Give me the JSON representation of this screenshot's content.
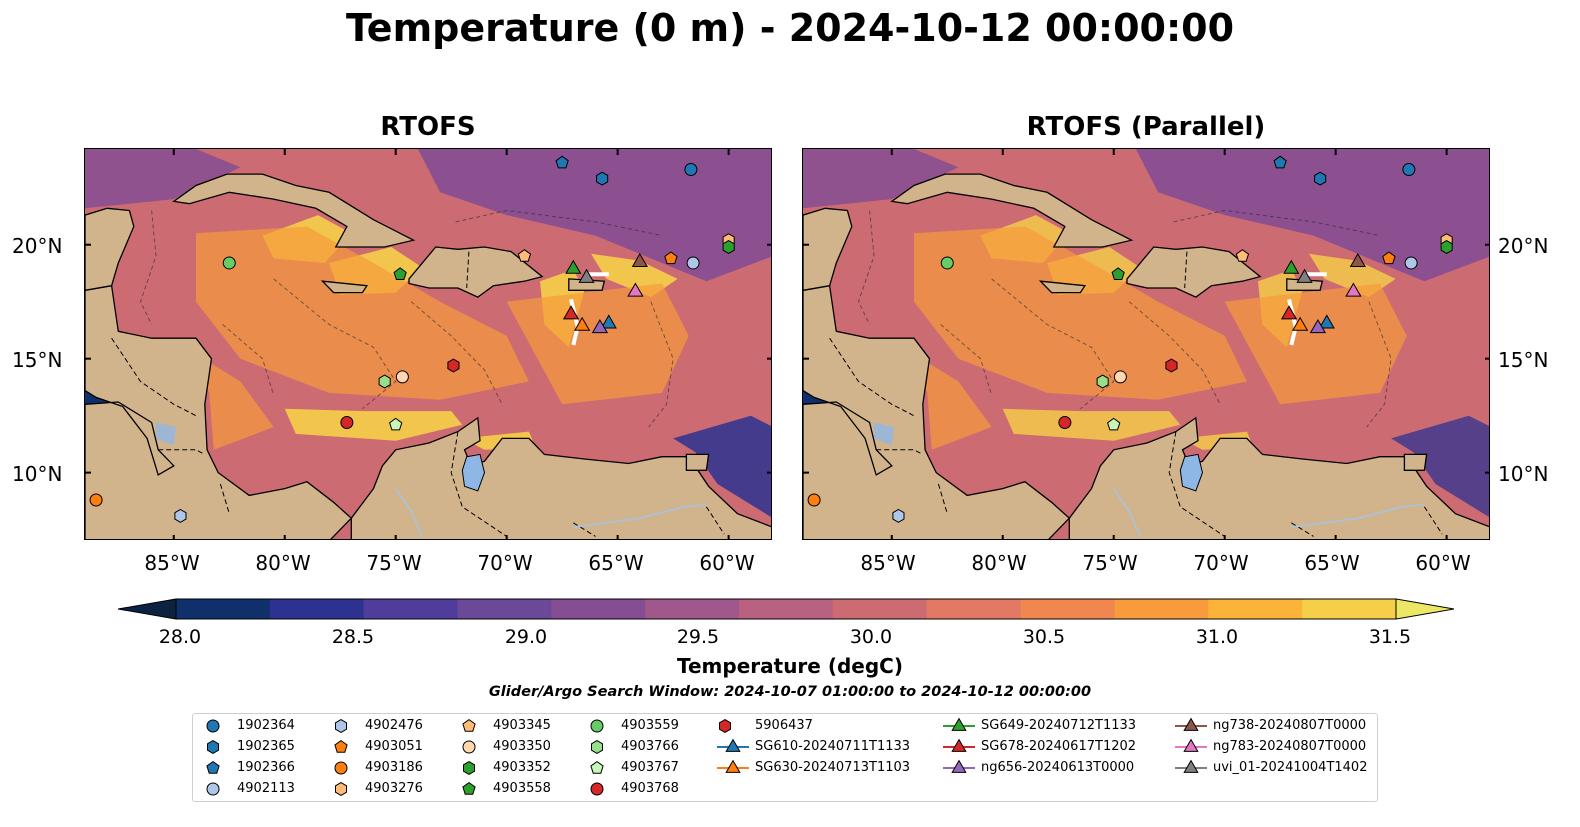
{
  "title": "Temperature (0 m) - 2024-10-12 00:00:00",
  "panels": [
    {
      "title": "RTOFS"
    },
    {
      "title": "RTOFS (Parallel)"
    }
  ],
  "axes": {
    "lon_ticks": [
      "85°W",
      "80°W",
      "75°W",
      "70°W",
      "65°W",
      "60°W"
    ],
    "lat_ticks": [
      "20°N",
      "15°N",
      "10°N"
    ]
  },
  "colorbar": {
    "label": "Temperature (degC)",
    "ticks": [
      "28.0",
      "28.5",
      "29.0",
      "29.5",
      "30.0",
      "30.5",
      "31.0",
      "31.5"
    ],
    "colors": [
      "#0b2340",
      "#10306b",
      "#2d3290",
      "#503c9a",
      "#6b4898",
      "#854e94",
      "#a0578c",
      "#b86181",
      "#cd6b73",
      "#e37863",
      "#f1864e",
      "#f79b3c",
      "#fbb438",
      "#f6cf48",
      "#ece865"
    ]
  },
  "search_window": "Glider/Argo Search Window: 2024-10-07 01:00:00 to 2024-10-12 00:00:00",
  "map_colors": {
    "land": "#d2b48c",
    "ocean_warm": "#cd6b73",
    "ocean_cool": "#854e94",
    "hot": "#f6cf48",
    "lake": "#8eb6e6",
    "river": "#a8c4dd"
  },
  "legend": [
    {
      "label": "1902364",
      "marker": "circle",
      "color": "#1f77b4"
    },
    {
      "label": "1902365",
      "marker": "hexagon",
      "color": "#1f77b4"
    },
    {
      "label": "1902366",
      "marker": "pentagon",
      "color": "#1f77b4"
    },
    {
      "label": "4902113",
      "marker": "circle",
      "color": "#aec7e8"
    },
    {
      "label": "4902476",
      "marker": "hexagon",
      "color": "#aec7e8"
    },
    {
      "label": "4903051",
      "marker": "pentagon",
      "color": "#ff7f0e"
    },
    {
      "label": "4903186",
      "marker": "circle",
      "color": "#ff7f0e"
    },
    {
      "label": "4903276",
      "marker": "hexagon",
      "color": "#ffbb78"
    },
    {
      "label": "4903345",
      "marker": "pentagon",
      "color": "#ffbb78"
    },
    {
      "label": "4903350",
      "marker": "circle",
      "color": "#ffd8b0"
    },
    {
      "label": "4903352",
      "marker": "hexagon",
      "color": "#2ca02c"
    },
    {
      "label": "4903558",
      "marker": "pentagon",
      "color": "#2ca02c"
    },
    {
      "label": "4903559",
      "marker": "circle",
      "color": "#66cc66"
    },
    {
      "label": "4903766",
      "marker": "hexagon",
      "color": "#98df8a"
    },
    {
      "label": "4903767",
      "marker": "pentagon",
      "color": "#c8f5b8"
    },
    {
      "label": "4903768",
      "marker": "circle",
      "color": "#d62728"
    },
    {
      "label": "5906437",
      "marker": "hexagon",
      "color": "#d62728"
    },
    {
      "label": "SG610-20240711T1133",
      "marker": "triangle",
      "color": "#1f77b4"
    },
    {
      "label": "SG630-20240713T1103",
      "marker": "triangle",
      "color": "#ff7f0e"
    },
    {
      "label": "SG649-20240712T1133",
      "marker": "triangle",
      "color": "#2ca02c"
    },
    {
      "label": "SG678-20240617T1202",
      "marker": "triangle",
      "color": "#d62728"
    },
    {
      "label": "ng656-20240613T0000",
      "marker": "triangle",
      "color": "#9467bd"
    },
    {
      "label": "ng738-20240807T0000",
      "marker": "triangle",
      "color": "#8c564b"
    },
    {
      "label": "ng783-20240807T0000",
      "marker": "triangle",
      "color": "#e377c2"
    },
    {
      "label": "uvi_01-20241004T1402",
      "marker": "triangle",
      "color": "#7f7f7f"
    }
  ],
  "floats": [
    {
      "id": "1902364",
      "lon": -61.7,
      "lat": 23.3
    },
    {
      "id": "1902365",
      "lon": -65.7,
      "lat": 22.9
    },
    {
      "id": "1902366",
      "lon": -67.5,
      "lat": 23.6
    },
    {
      "id": "4902113",
      "lon": -61.6,
      "lat": 19.2
    },
    {
      "id": "4902476",
      "lon": -84.7,
      "lat": 8.1
    },
    {
      "id": "4903051",
      "lon": -62.6,
      "lat": 19.4
    },
    {
      "id": "4903186",
      "lon": -88.5,
      "lat": 8.8
    },
    {
      "id": "4903276",
      "lon": -60.0,
      "lat": 20.2
    },
    {
      "id": "4903345",
      "lon": -69.2,
      "lat": 19.5
    },
    {
      "id": "4903350",
      "lon": -74.7,
      "lat": 14.2
    },
    {
      "id": "4903352",
      "lon": -60.0,
      "lat": 19.9
    },
    {
      "id": "4903558",
      "lon": -74.8,
      "lat": 18.7
    },
    {
      "id": "4903559",
      "lon": -82.5,
      "lat": 19.2
    },
    {
      "id": "4903766",
      "lon": -75.5,
      "lat": 14.0
    },
    {
      "id": "4903767",
      "lon": -75.0,
      "lat": 12.1
    },
    {
      "id": "4903768",
      "lon": -77.2,
      "lat": 12.2
    },
    {
      "id": "5906437",
      "lon": -72.4,
      "lat": 14.7
    },
    {
      "id": "SG610-20240711T1133",
      "lon": -65.4,
      "lat": 16.6
    },
    {
      "id": "SG630-20240713T1103",
      "lon": -66.6,
      "lat": 16.5
    },
    {
      "id": "SG649-20240712T1133",
      "lon": -67.0,
      "lat": 19.0
    },
    {
      "id": "SG678-20240617T1202",
      "lon": -67.1,
      "lat": 17.0
    },
    {
      "id": "ng656-20240613T0000",
      "lon": -65.8,
      "lat": 16.4
    },
    {
      "id": "ng738-20240807T0000",
      "lon": -64.0,
      "lat": 19.3
    },
    {
      "id": "ng783-20240807T0000",
      "lon": -64.2,
      "lat": 18.0
    },
    {
      "id": "uvi_01-20241004T1402",
      "lon": -66.4,
      "lat": 18.6
    }
  ]
}
